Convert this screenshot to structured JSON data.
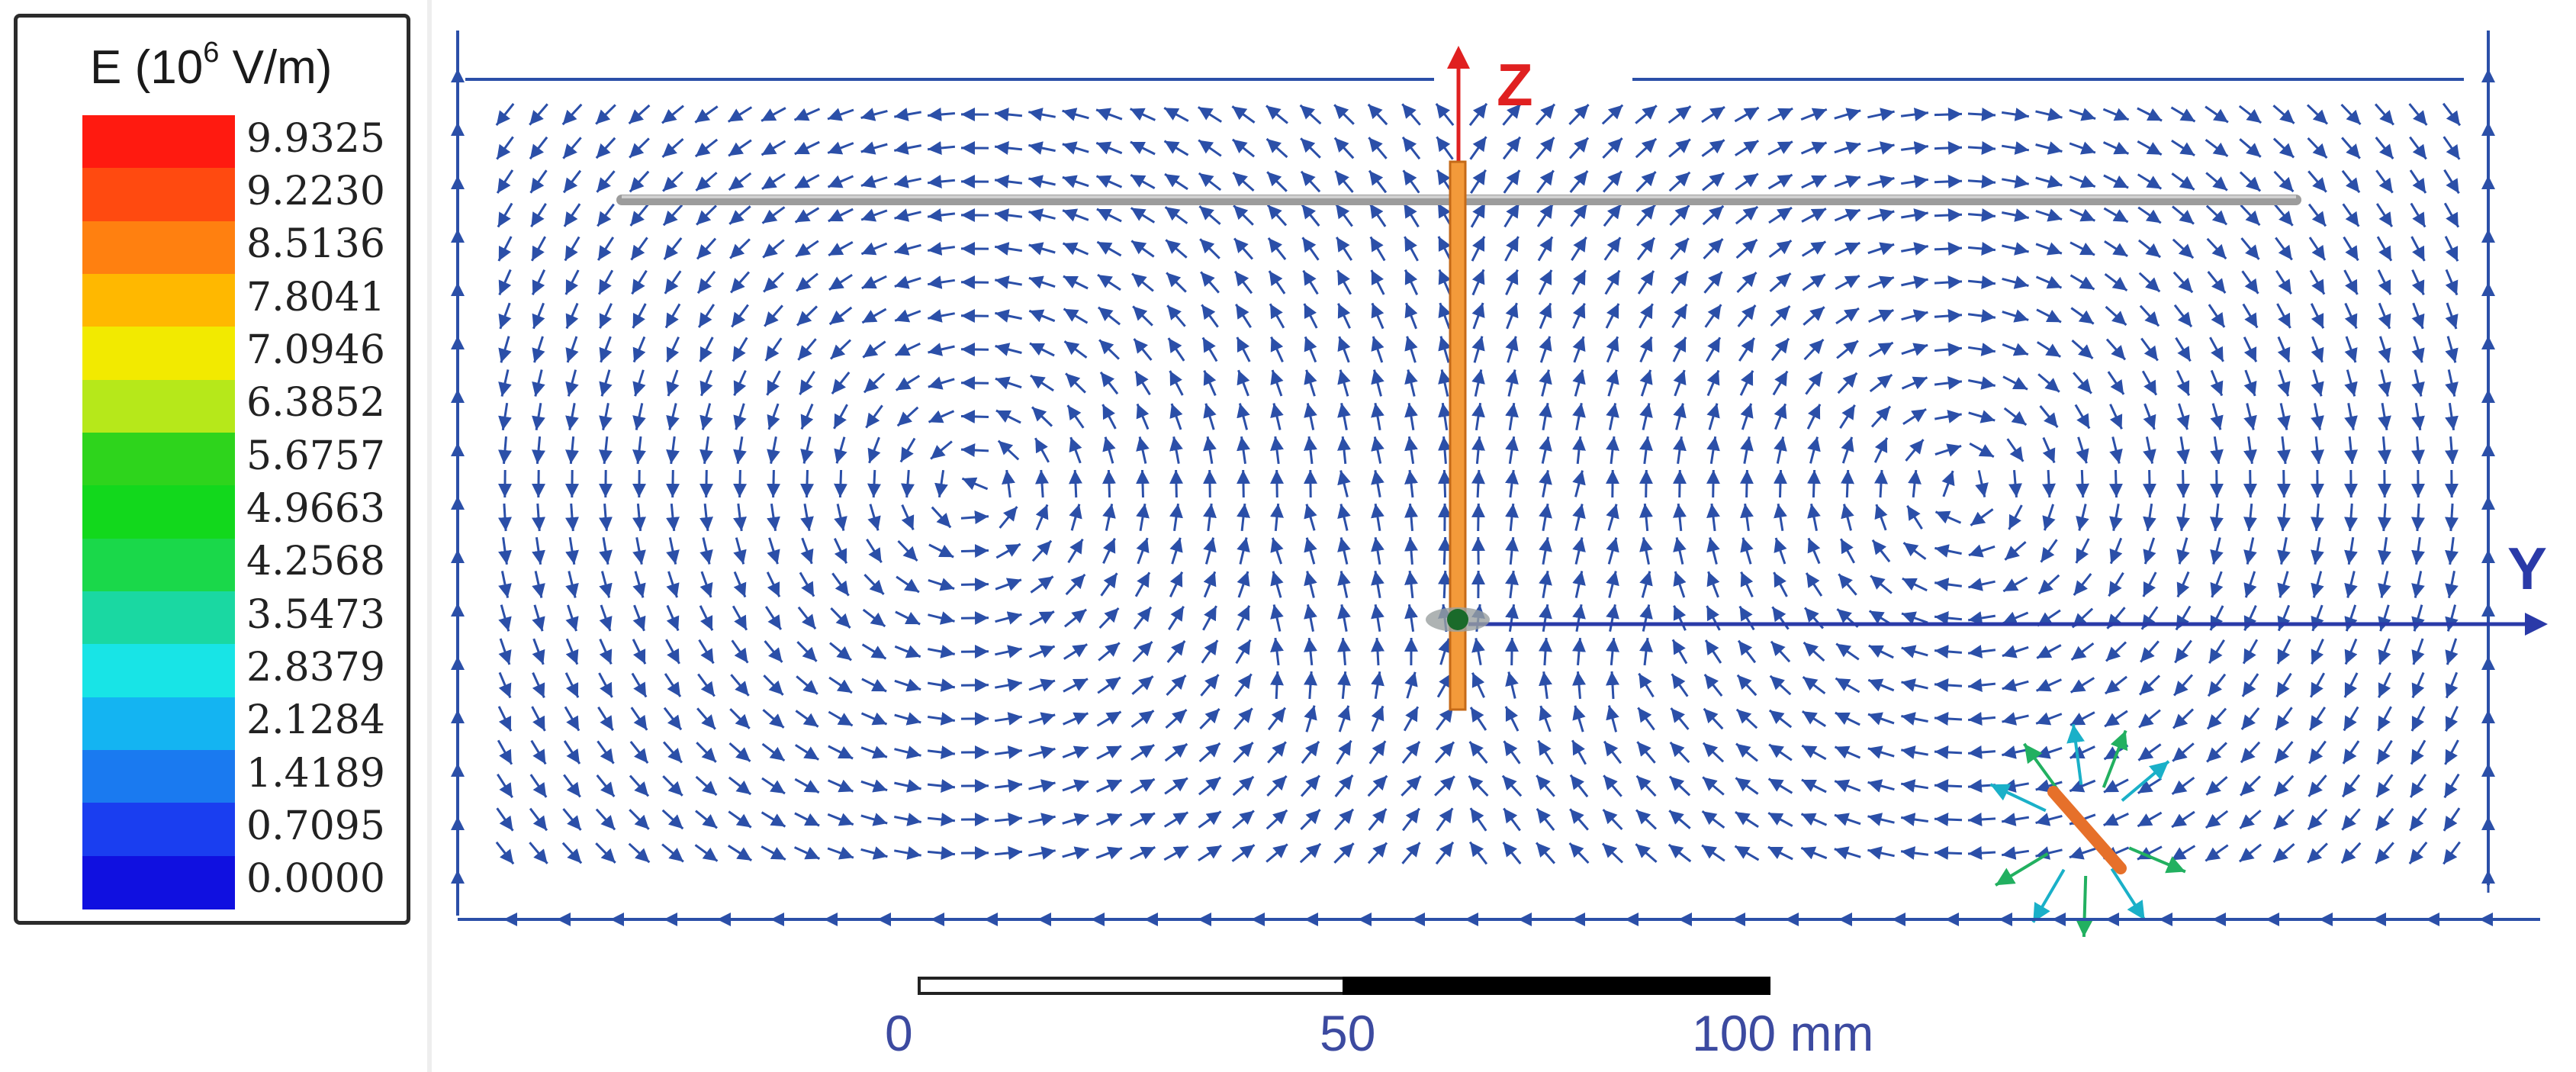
{
  "legend": {
    "title_prefix": "E (10",
    "title_exp": "6",
    "title_suffix": " V/m)",
    "ticks": [
      "9.9325",
      "9.2230",
      "8.5136",
      "7.8041",
      "7.0946",
      "6.3852",
      "5.6757",
      "4.9663",
      "4.2568",
      "3.5473",
      "2.8379",
      "2.1284",
      "1.4189",
      "0.7095",
      "0.0000"
    ],
    "colors": [
      "#ff1a10",
      "#ff4a10",
      "#ff8010",
      "#ffb800",
      "#f2ea00",
      "#b6e81a",
      "#2ed41c",
      "#12d81c",
      "#1ad84a",
      "#1ad8a2",
      "#18e4e6",
      "#14b4f2",
      "#1a7af0",
      "#1a3ef0",
      "#1010e0"
    ]
  },
  "axes": {
    "z_label": "Z",
    "y_label": "Y",
    "z_color": "#e02020",
    "y_color": "#2a3aa8"
  },
  "scale_bar": {
    "labels": [
      "0",
      "50",
      "100 mm"
    ]
  },
  "colors": {
    "arrow": "#2b4fa8",
    "antenna": "#f39a3a",
    "ground_plane": "#a8a8a8"
  }
}
